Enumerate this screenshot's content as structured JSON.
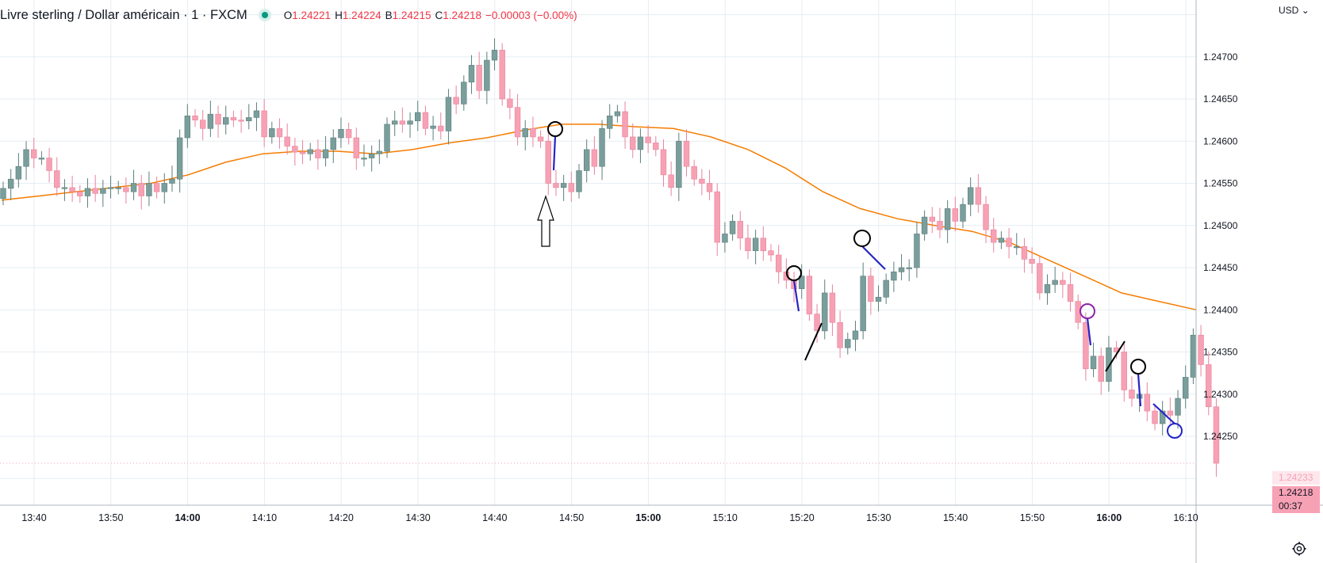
{
  "header": {
    "symbol_title": "Livre sterling / Dollar américain · 1 · FXCM",
    "open_label": "O",
    "open_value": "1.24221",
    "high_label": "H",
    "high_value": "1.24224",
    "low_label": "B",
    "low_value": "1.24215",
    "close_label": "C",
    "close_value": "1.24218",
    "change": "−0.00003 (−0.00%)",
    "currency": "USD",
    "status_color": "#089981"
  },
  "price_axis": {
    "ma_badge": "1.24233",
    "last_price": "1.24218",
    "countdown": "00:37"
  },
  "colors": {
    "up": "#7a9e9b",
    "down": "#f7a1b5",
    "ma": "#f57c00",
    "grid": "#e6edf3",
    "markup_blue": "#2525c8",
    "markup_purple": "#8e24aa"
  },
  "chart_data": {
    "type": "candlestick",
    "title": "Livre sterling / Dollar américain · 1 · FXCM",
    "interval_minutes": 1,
    "ylim": [
      1.2419,
      1.2475
    ],
    "y_ticks": [
      "1.24250",
      "1.24300",
      "1.24350",
      "1.24400",
      "1.24450",
      "1.24500",
      "1.24550",
      "1.24600",
      "1.24650",
      "1.24700"
    ],
    "x_ticks": [
      {
        "label": "13:40",
        "bold": false
      },
      {
        "label": "13:50",
        "bold": false
      },
      {
        "label": "14:00",
        "bold": true
      },
      {
        "label": "14:10",
        "bold": false
      },
      {
        "label": "14:20",
        "bold": false
      },
      {
        "label": "14:30",
        "bold": false
      },
      {
        "label": "14:40",
        "bold": false
      },
      {
        "label": "14:50",
        "bold": false
      },
      {
        "label": "15:00",
        "bold": true
      },
      {
        "label": "15:10",
        "bold": false
      },
      {
        "label": "15:20",
        "bold": false
      },
      {
        "label": "15:30",
        "bold": false
      },
      {
        "label": "15:40",
        "bold": false
      },
      {
        "label": "15:50",
        "bold": false
      },
      {
        "label": "16:00",
        "bold": true
      },
      {
        "label": "16:10",
        "bold": false
      }
    ],
    "closes": [
      1.24544,
      1.24555,
      1.2457,
      1.2459,
      1.2458,
      1.2458,
      1.24565,
      1.24545,
      1.24545,
      1.2454,
      1.24535,
      1.24544,
      1.24538,
      1.24544,
      1.24545,
      1.24545,
      1.2454,
      1.2455,
      1.24535,
      1.2455,
      1.2454,
      1.2455,
      1.24555,
      1.24604,
      1.2463,
      1.24625,
      1.24615,
      1.24632,
      1.2462,
      1.24628,
      1.24625,
      1.24624,
      1.24628,
      1.24636,
      1.24605,
      1.24615,
      1.24605,
      1.24594,
      1.24587,
      1.24585,
      1.2459,
      1.2458,
      1.2459,
      1.24604,
      1.24614,
      1.24604,
      1.2458,
      1.2458,
      1.24585,
      1.24588,
      1.2462,
      1.24624,
      1.2462,
      1.24624,
      1.24634,
      1.24615,
      1.24618,
      1.24612,
      1.24652,
      1.24644,
      1.2467,
      1.2469,
      1.2466,
      1.24696,
      1.24708,
      1.2465,
      1.2464,
      1.24605,
      1.24615,
      1.24605,
      1.246,
      1.2455,
      1.24545,
      1.2455,
      1.2454,
      1.24565,
      1.2459,
      1.2457,
      1.24615,
      1.2463,
      1.24635,
      1.24605,
      1.2459,
      1.24605,
      1.24598,
      1.2459,
      1.2456,
      1.24545,
      1.246,
      1.2457,
      1.24555,
      1.2455,
      1.2454,
      1.2448,
      1.2449,
      1.24505,
      1.24485,
      1.2447,
      1.24485,
      1.2447,
      1.24465,
      1.24445,
      1.24435,
      1.24425,
      1.2444,
      1.24395,
      1.24375,
      1.2442,
      1.24385,
      1.24355,
      1.24365,
      1.24375,
      1.2444,
      1.2441,
      1.24415,
      1.24435,
      1.24445,
      1.2445,
      1.2445,
      1.2449,
      1.2451,
      1.24505,
      1.24495,
      1.2452,
      1.24505,
      1.24525,
      1.24545,
      1.24525,
      1.24495,
      1.2448,
      1.24485,
      1.24475,
      1.24475,
      1.2446,
      1.24455,
      1.2442,
      1.2443,
      1.24435,
      1.2443,
      1.2441,
      1.24385,
      1.2433,
      1.24345,
      1.24315,
      1.24355,
      1.2435,
      1.24305,
      1.24295,
      1.243,
      1.2428,
      1.24265,
      1.2428,
      1.24275,
      1.24295,
      1.2432,
      1.2437,
      1.24335,
      1.24285,
      1.24218
    ],
    "ma_line": [
      1.2453,
      1.24535,
      1.2454,
      1.24545,
      1.2455,
      1.2456,
      1.24575,
      1.24585,
      1.24588,
      1.24588,
      1.24585,
      1.2459,
      1.24598,
      1.24604,
      1.24613,
      1.2462,
      1.2462,
      1.24617,
      1.24615,
      1.24605,
      1.2459,
      1.24568,
      1.2454,
      1.2452,
      1.24508,
      1.245,
      1.24493,
      1.2448,
      1.2446,
      1.2444,
      1.2442,
      1.2441,
      1.244
    ],
    "markup": {
      "arrow_annotation": "up-arrow",
      "circle_annotations": 6,
      "slash_annotations": 3
    }
  }
}
